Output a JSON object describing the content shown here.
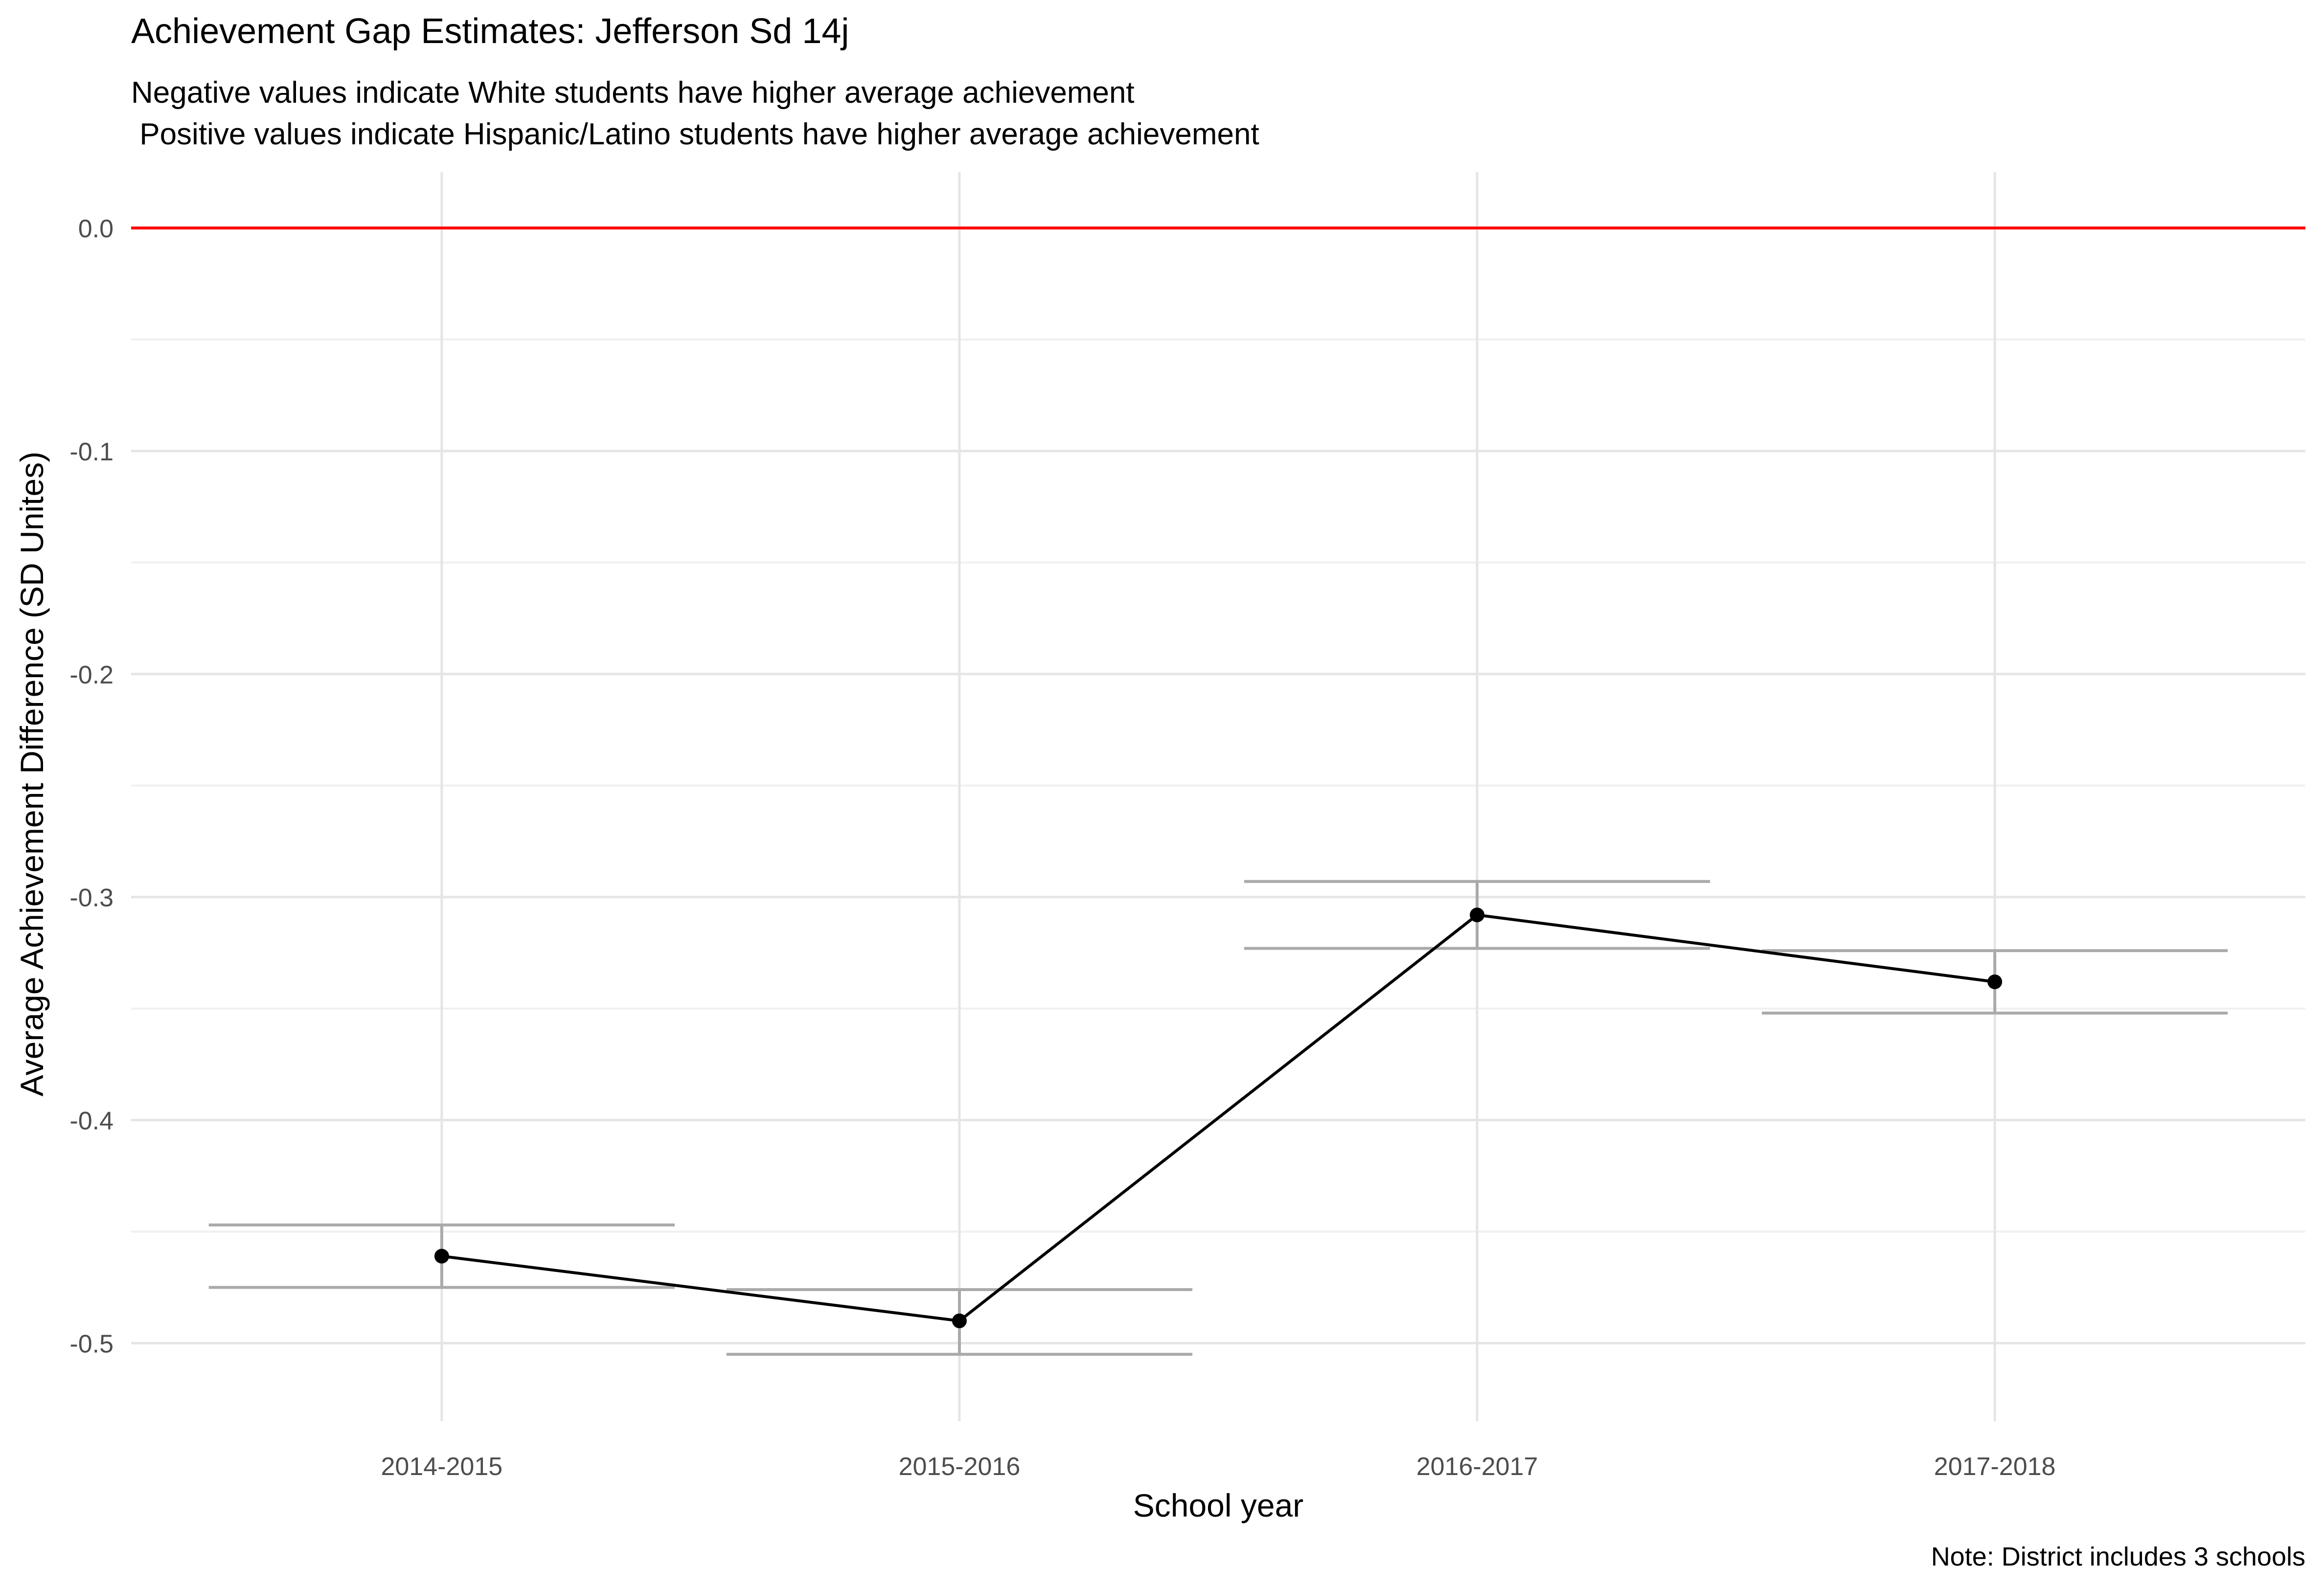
{
  "chart_data": {
    "type": "line",
    "title": "Achievement Gap Estimates: Jefferson Sd 14j",
    "subtitle_lines": [
      "Negative values indicate White students have higher average achievement",
      " Positive values indicate Hispanic/Latino students have higher average achievement"
    ],
    "xlabel": "School year",
    "ylabel": "Average Achievement Difference (SD Unites)",
    "caption": "Note: District includes 3 schools",
    "categories": [
      "2014-2015",
      "2015-2016",
      "2016-2017",
      "2017-2018"
    ],
    "series": [
      {
        "values": [
          -0.461,
          -0.49,
          -0.308,
          -0.338
        ],
        "upper": [
          -0.447,
          -0.476,
          -0.293,
          -0.324
        ],
        "lower": [
          -0.475,
          -0.505,
          -0.323,
          -0.352
        ]
      }
    ],
    "ylim": [
      -0.535,
      0.025
    ],
    "yticks": [
      0.0,
      -0.1,
      -0.2,
      -0.3,
      -0.4,
      -0.5
    ],
    "ytick_labels": [
      "0.0",
      "-0.1",
      "-0.2",
      "-0.3",
      "-0.4",
      "-0.5"
    ],
    "reference_line": {
      "y": 0.0,
      "color": "#ff0000"
    },
    "grid": true,
    "legend": "none",
    "colors": {
      "line": "#000000",
      "errorbar": "#aaaaaa",
      "grid_major": "#e5e5e5",
      "grid_minor": "#f0f0f0"
    }
  }
}
